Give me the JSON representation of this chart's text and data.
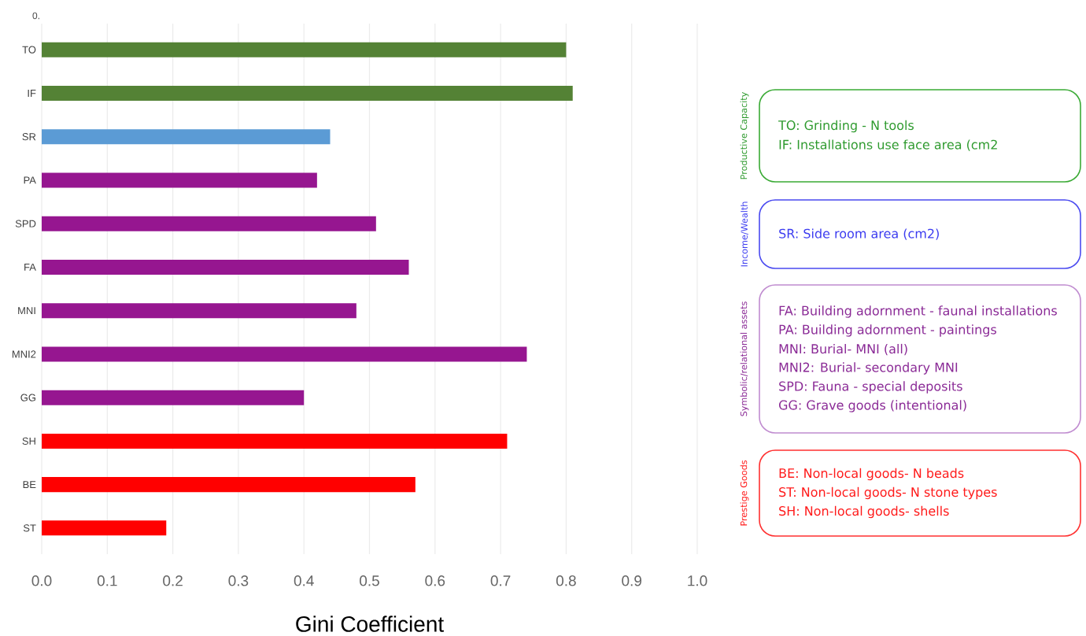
{
  "chart_data": {
    "type": "bar",
    "orientation": "horizontal",
    "xlabel": "Gini Coefficient",
    "categories": [
      "TO",
      "IF",
      "SR",
      "PA",
      "SPD",
      "FA",
      "MNI",
      "MNI2",
      "GG",
      "SH",
      "BE",
      "ST"
    ],
    "values": [
      0.8,
      0.81,
      0.44,
      0.42,
      0.51,
      0.56,
      0.48,
      0.74,
      0.4,
      0.71,
      0.57,
      0.19
    ],
    "colors": [
      "#548235",
      "#548235",
      "#5b9bd5",
      "#961690",
      "#961690",
      "#961690",
      "#961690",
      "#961690",
      "#961690",
      "#ff0000",
      "#ff0000",
      "#ff0000"
    ],
    "xlim": [
      0,
      1
    ],
    "xticks": [
      {
        "value": 0,
        "label": "0.0"
      },
      0.1,
      0.2,
      0.3,
      0.4,
      0.5,
      0.6,
      0.7,
      0.8,
      0.9,
      {
        "value": 1,
        "label": "1.0"
      }
    ],
    "grid": "x",
    "annotations": [
      "0.",
      "Productive Capacity",
      "TO: Grinding - N tools",
      "IF: Installations use face area (cm2",
      "Income/Wealth",
      "SR: Side room area (cm2)",
      "Symbolic/relational assets",
      "FA: Building adornment - faunal installations",
      "PA: Building adornment - paintings",
      "MNI: Burial- MNI (all)",
      "MNI2: Burial- secondary MNI",
      "SPD: Fauna - special deposits",
      "GG: Grave goods (intentional)",
      "Prestige Goods",
      "BE: Non-local goods- N beads",
      "ST: Non-local goods- N stone types",
      "SH: Non-local goods- shells"
    ]
  }
}
